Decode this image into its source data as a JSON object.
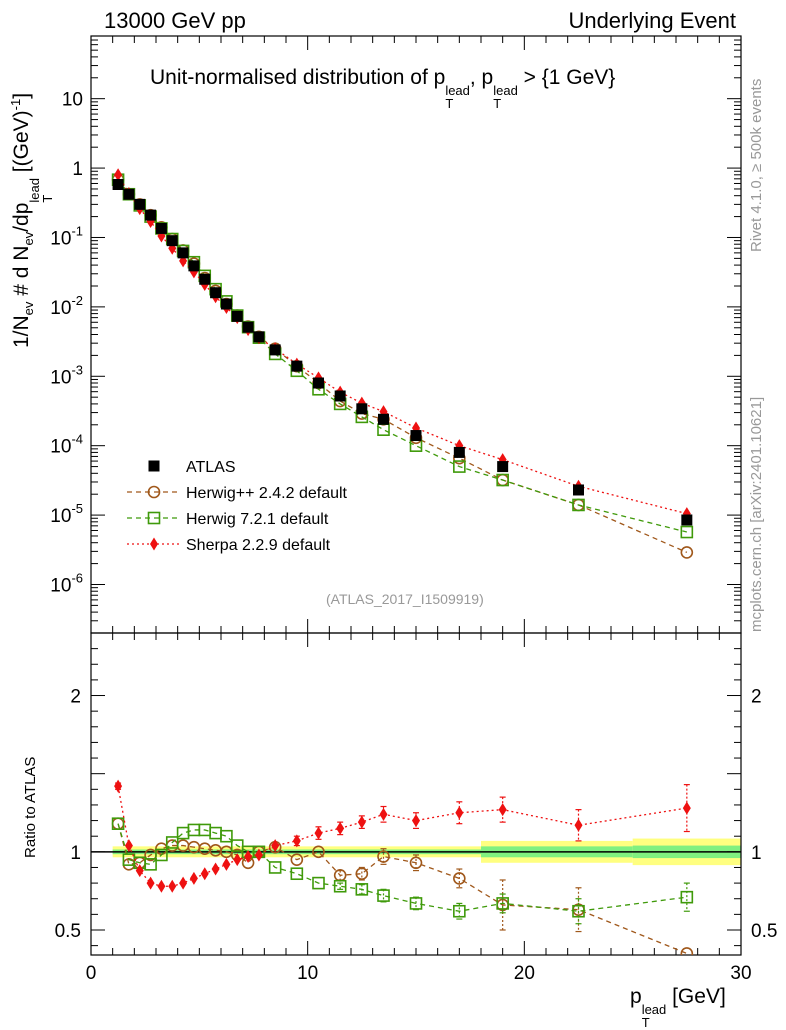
{
  "header": {
    "left": "13000 GeV pp",
    "right": "Underlying Event"
  },
  "side_labels": {
    "rivet": "Rivet 4.1.0, ≥ 500k events",
    "mcplots": "mcplots.cern.ch [arXiv:2401.10621]"
  },
  "title": {
    "prefix": "Unit-normalised distribution of p",
    "sup1": "lead",
    "sub1": "T",
    "mid": ", p",
    "sup2": "lead",
    "sub2": "T",
    "suffix": " > {1 GeV}"
  },
  "ylabel": {
    "a": "1/N",
    "a_sub": "ev",
    "b": " # d N",
    "b_sub": "ev",
    "c": "/dp",
    "c_sup": "lead",
    "c_sub": "T",
    "d": " [(GeV)",
    "d_sup": "-1",
    "e": "]"
  },
  "ratio_ylabel": "Ratio to ATLAS",
  "xlabel": {
    "a": "p",
    "a_sup": "lead",
    "a_sub": "T",
    "b": " [GeV]"
  },
  "watermark": "(ATLAS_2017_I1509919)",
  "colors": {
    "atlas": "#000000",
    "herwigpp": "#A0581B",
    "herwig7": "#3F9A0A",
    "sherpa": "#EE1111",
    "band_outer": "#FFFF80",
    "band_inner": "#80F080"
  },
  "chart_data": {
    "type": "scatter",
    "title": "Unit-normalised distribution of pT lead, pT lead > {1 GeV}",
    "xlabel": "pT lead [GeV]",
    "ylabel": "1/Nev # d Nev/dpT lead [(GeV)-1]",
    "x_range": [
      0,
      30
    ],
    "main": {
      "yscale": "log",
      "ylim": [
        2e-07,
        80
      ],
      "y_ticks": [
        {
          "v": 1e-06,
          "m": "10",
          "e": "-6"
        },
        {
          "v": 1e-05,
          "m": "10",
          "e": "-5"
        },
        {
          "v": 0.0001,
          "m": "10",
          "e": "-4"
        },
        {
          "v": 0.001,
          "m": "10",
          "e": "-3"
        },
        {
          "v": 0.01,
          "m": "10",
          "e": "-2"
        },
        {
          "v": 0.1,
          "m": "10",
          "e": "-1"
        },
        {
          "v": 1,
          "m": "1",
          "e": ""
        },
        {
          "v": 10,
          "m": "10",
          "e": ""
        }
      ]
    },
    "ratio": {
      "ylim": [
        0.34,
        2.4
      ],
      "ticks": [
        {
          "v": 0.5,
          "label": "0.5"
        },
        {
          "v": 1,
          "label": "1"
        },
        {
          "v": 2,
          "label": "2"
        }
      ],
      "band_segments": [
        {
          "x0": 1.0,
          "x1": 18.0,
          "outer": 0.035,
          "inner": 0.015
        },
        {
          "x0": 18.0,
          "x1": 25.0,
          "outer": 0.07,
          "inner": 0.035
        },
        {
          "x0": 25.0,
          "x1": 30.0,
          "outer": 0.085,
          "inner": 0.04
        }
      ]
    },
    "x_ticks": [
      {
        "v": 0,
        "label": "0"
      },
      {
        "v": 10,
        "label": "10"
      },
      {
        "v": 20,
        "label": "20"
      },
      {
        "v": 30,
        "label": "30"
      }
    ],
    "x": [
      1.25,
      1.75,
      2.25,
      2.75,
      3.25,
      3.75,
      4.25,
      4.75,
      5.25,
      5.75,
      6.25,
      6.75,
      7.25,
      7.75,
      8.5,
      9.5,
      10.5,
      11.5,
      12.5,
      13.5,
      15.0,
      17.0,
      19.0,
      22.5,
      27.5
    ],
    "series": [
      {
        "name": "ATLAS",
        "marker": "square",
        "values": [
          0.58,
          0.42,
          0.3,
          0.21,
          0.135,
          0.09,
          0.06,
          0.039,
          0.025,
          0.016,
          0.011,
          0.0073,
          0.0051,
          0.0037,
          0.0024,
          0.0014,
          0.0008,
          0.00052,
          0.00034,
          0.00024,
          0.00014,
          8e-05,
          5e-05,
          2.3e-05,
          8.5e-06
        ]
      },
      {
        "name": "Herwig++ 2.4.2 default",
        "marker": "open-circle",
        "line": "dashed",
        "values": [
          0.68,
          0.42,
          0.3,
          0.21,
          0.14,
          0.095,
          0.065,
          0.042,
          0.026,
          0.017,
          0.011,
          0.0075,
          0.0052,
          0.0037,
          0.0025,
          0.0014,
          0.0008,
          0.00044,
          0.00029,
          0.00024,
          0.00013,
          6.6e-05,
          3.2e-05,
          1.4e-05,
          2.9e-06
        ],
        "ratio": [
          1.18,
          0.92,
          0.93,
          0.98,
          1.02,
          1.04,
          1.04,
          1.03,
          1.02,
          1.01,
          1.0,
          0.98,
          0.93,
          1.0,
          1.03,
          0.95,
          1.0,
          0.85,
          0.86,
          0.97,
          0.93,
          0.83,
          0.66,
          0.63,
          0.35
        ],
        "ratio_err": [
          0.0,
          0.0,
          0.0,
          0.0,
          0.0,
          0.0,
          0.0,
          0.0,
          0.0,
          0.0,
          0.0,
          0.0,
          0.0,
          0.0,
          0.0,
          0.0,
          0.0,
          0.03,
          0.04,
          0.05,
          0.05,
          0.06,
          0.16,
          0.14,
          0.0
        ]
      },
      {
        "name": "Herwig 7.2.1 default",
        "marker": "open-square",
        "line": "dashed",
        "values": [
          0.68,
          0.42,
          0.29,
          0.2,
          0.135,
          0.095,
          0.064,
          0.044,
          0.028,
          0.018,
          0.012,
          0.0075,
          0.0051,
          0.0036,
          0.0021,
          0.0012,
          0.00065,
          0.0004,
          0.00026,
          0.00017,
          0.0001,
          5e-05,
          3.2e-05,
          1.4e-05,
          5.7e-06
        ],
        "ratio": [
          1.18,
          0.95,
          0.93,
          0.92,
          0.98,
          1.06,
          1.12,
          1.14,
          1.14,
          1.12,
          1.1,
          1.04,
          1.0,
          1.0,
          0.9,
          0.86,
          0.8,
          0.78,
          0.76,
          0.72,
          0.67,
          0.62,
          0.67,
          0.62,
          0.71
        ],
        "ratio_err": [
          0.0,
          0.0,
          0.0,
          0.0,
          0.0,
          0.0,
          0.0,
          0.0,
          0.0,
          0.0,
          0.0,
          0.0,
          0.0,
          0.0,
          0.0,
          0.0,
          0.0,
          0.02,
          0.03,
          0.04,
          0.04,
          0.05,
          0.06,
          0.08,
          0.09
        ]
      },
      {
        "name": "Sherpa 2.2.9 default",
        "marker": "diamond",
        "line": "dotted",
        "values": [
          0.8,
          0.43,
          0.26,
          0.17,
          0.105,
          0.07,
          0.046,
          0.032,
          0.021,
          0.014,
          0.0098,
          0.007,
          0.0047,
          0.0036,
          0.0025,
          0.0015,
          0.00095,
          0.00059,
          0.00041,
          0.00031,
          0.00018,
          0.0001,
          6.3e-05,
          2.6e-05,
          1.05e-05
        ],
        "ratio": [
          1.42,
          1.04,
          0.88,
          0.8,
          0.78,
          0.78,
          0.8,
          0.83,
          0.86,
          0.89,
          0.92,
          0.95,
          0.97,
          0.98,
          1.04,
          1.07,
          1.12,
          1.15,
          1.19,
          1.24,
          1.2,
          1.25,
          1.27,
          1.17,
          1.28
        ],
        "ratio_err": [
          0.02,
          0.0,
          0.0,
          0.0,
          0.0,
          0.0,
          0.0,
          0.0,
          0.0,
          0.0,
          0.0,
          0.0,
          0.0,
          0.0,
          0.0,
          0.03,
          0.04,
          0.04,
          0.04,
          0.05,
          0.05,
          0.07,
          0.08,
          0.1,
          0.15
        ]
      }
    ]
  }
}
